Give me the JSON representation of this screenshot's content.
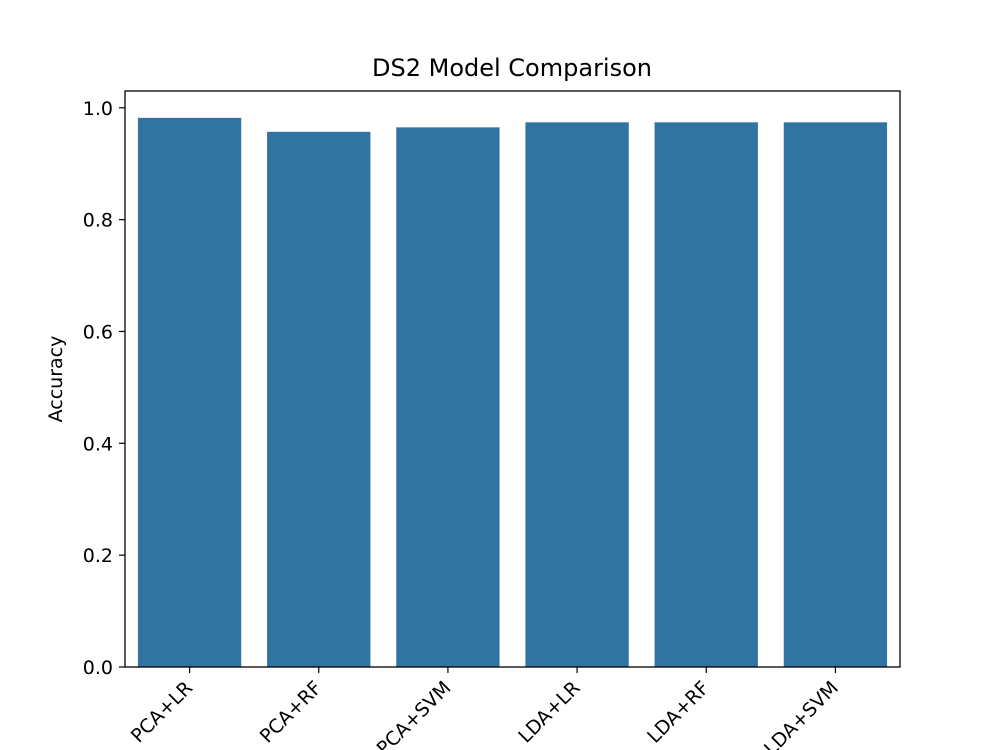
{
  "chart_data": {
    "type": "bar",
    "title": "DS2 Model Comparison",
    "xlabel": "",
    "ylabel": "Accuracy",
    "categories": [
      "PCA+LR",
      "PCA+RF",
      "PCA+SVM",
      "LDA+LR",
      "LDA+RF",
      "LDA+SVM"
    ],
    "values": [
      0.982,
      0.957,
      0.965,
      0.974,
      0.974,
      0.974
    ],
    "ylim": [
      0,
      1.03
    ],
    "yticks": [
      "0.0",
      "0.2",
      "0.4",
      "0.6",
      "0.8",
      "1.0"
    ],
    "grid": false,
    "bar_color": "#3274a1",
    "xtick_rotation": -45
  }
}
